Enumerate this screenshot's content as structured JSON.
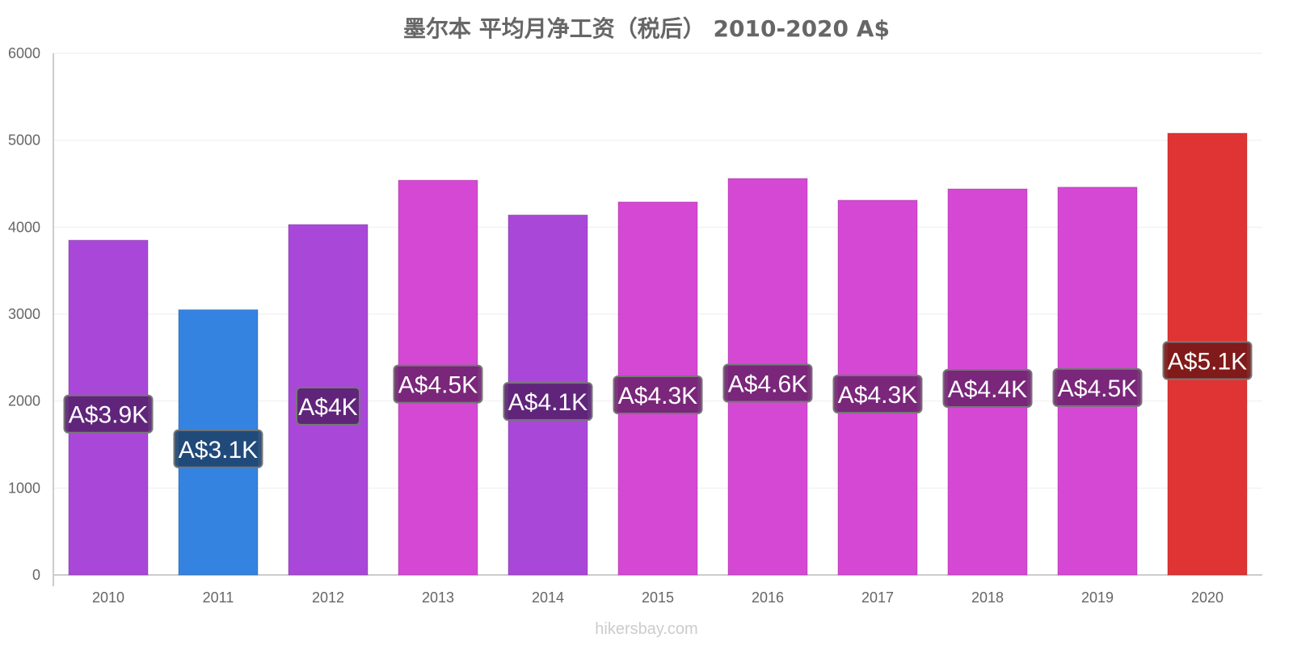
{
  "chart_data": {
    "type": "bar",
    "title": "墨尔本 平均月净工资（税后） 2010-2020 A$",
    "categories": [
      "2010",
      "2011",
      "2012",
      "2013",
      "2014",
      "2015",
      "2016",
      "2017",
      "2018",
      "2019",
      "2020"
    ],
    "values": [
      3850,
      3050,
      4030,
      4540,
      4140,
      4290,
      4560,
      4310,
      4440,
      4460,
      5080
    ],
    "data_labels": [
      "A$3.9K",
      "A$3.1K",
      "A$4K",
      "A$4.5K",
      "A$4.1K",
      "A$4.3K",
      "A$4.6K",
      "A$4.3K",
      "A$4.4K",
      "A$4.5K",
      "A$5.1K"
    ],
    "bar_colors": [
      "#a948d8",
      "#3583e0",
      "#a948d8",
      "#d548d4",
      "#a948d8",
      "#d548d4",
      "#d548d4",
      "#d548d4",
      "#d548d4",
      "#d548d4",
      "#e03434"
    ],
    "label_bg_colors": [
      "#5a2373",
      "#1e4570",
      "#5a2373",
      "#722472",
      "#5a2373",
      "#722472",
      "#722472",
      "#722472",
      "#722472",
      "#722472",
      "#781818"
    ],
    "ylim": [
      0,
      6000
    ],
    "yticks": [
      0,
      1000,
      2000,
      3000,
      4000,
      5000,
      6000
    ],
    "xlabel": "",
    "ylabel": "",
    "grid": true,
    "legend": "none"
  },
  "footer": "hikersbay.com"
}
